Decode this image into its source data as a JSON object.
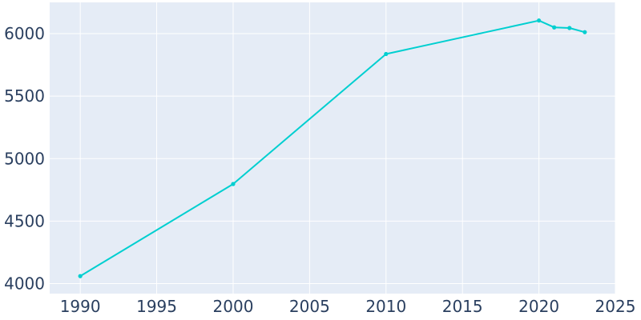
{
  "chart_data": {
    "type": "line",
    "title": "",
    "xlabel": "",
    "ylabel": "",
    "xlim": [
      1988,
      2025
    ],
    "ylim": [
      3920,
      6250
    ],
    "x_ticks": [
      1990,
      1995,
      2000,
      2005,
      2010,
      2015,
      2020,
      2025
    ],
    "x_tick_labels": [
      "1990",
      "1995",
      "2000",
      "2005",
      "2010",
      "2015",
      "2020",
      "2025"
    ],
    "y_ticks": [
      4000,
      4500,
      5000,
      5500,
      6000
    ],
    "y_tick_labels": [
      "4000",
      "4500",
      "5000",
      "5500",
      "6000"
    ],
    "grid": true,
    "legend": "none",
    "series": [
      {
        "x": [
          1990,
          2000,
          2010,
          2020,
          2021,
          2022,
          2023
        ],
        "values": [
          4060,
          4797,
          5837,
          6105,
          6050,
          6045,
          6012
        ],
        "color": "#00cfd0"
      }
    ],
    "colors": {
      "plot_background": "#e5ecf6",
      "grid": "#ffffff",
      "text": "#2a3f5f"
    }
  }
}
